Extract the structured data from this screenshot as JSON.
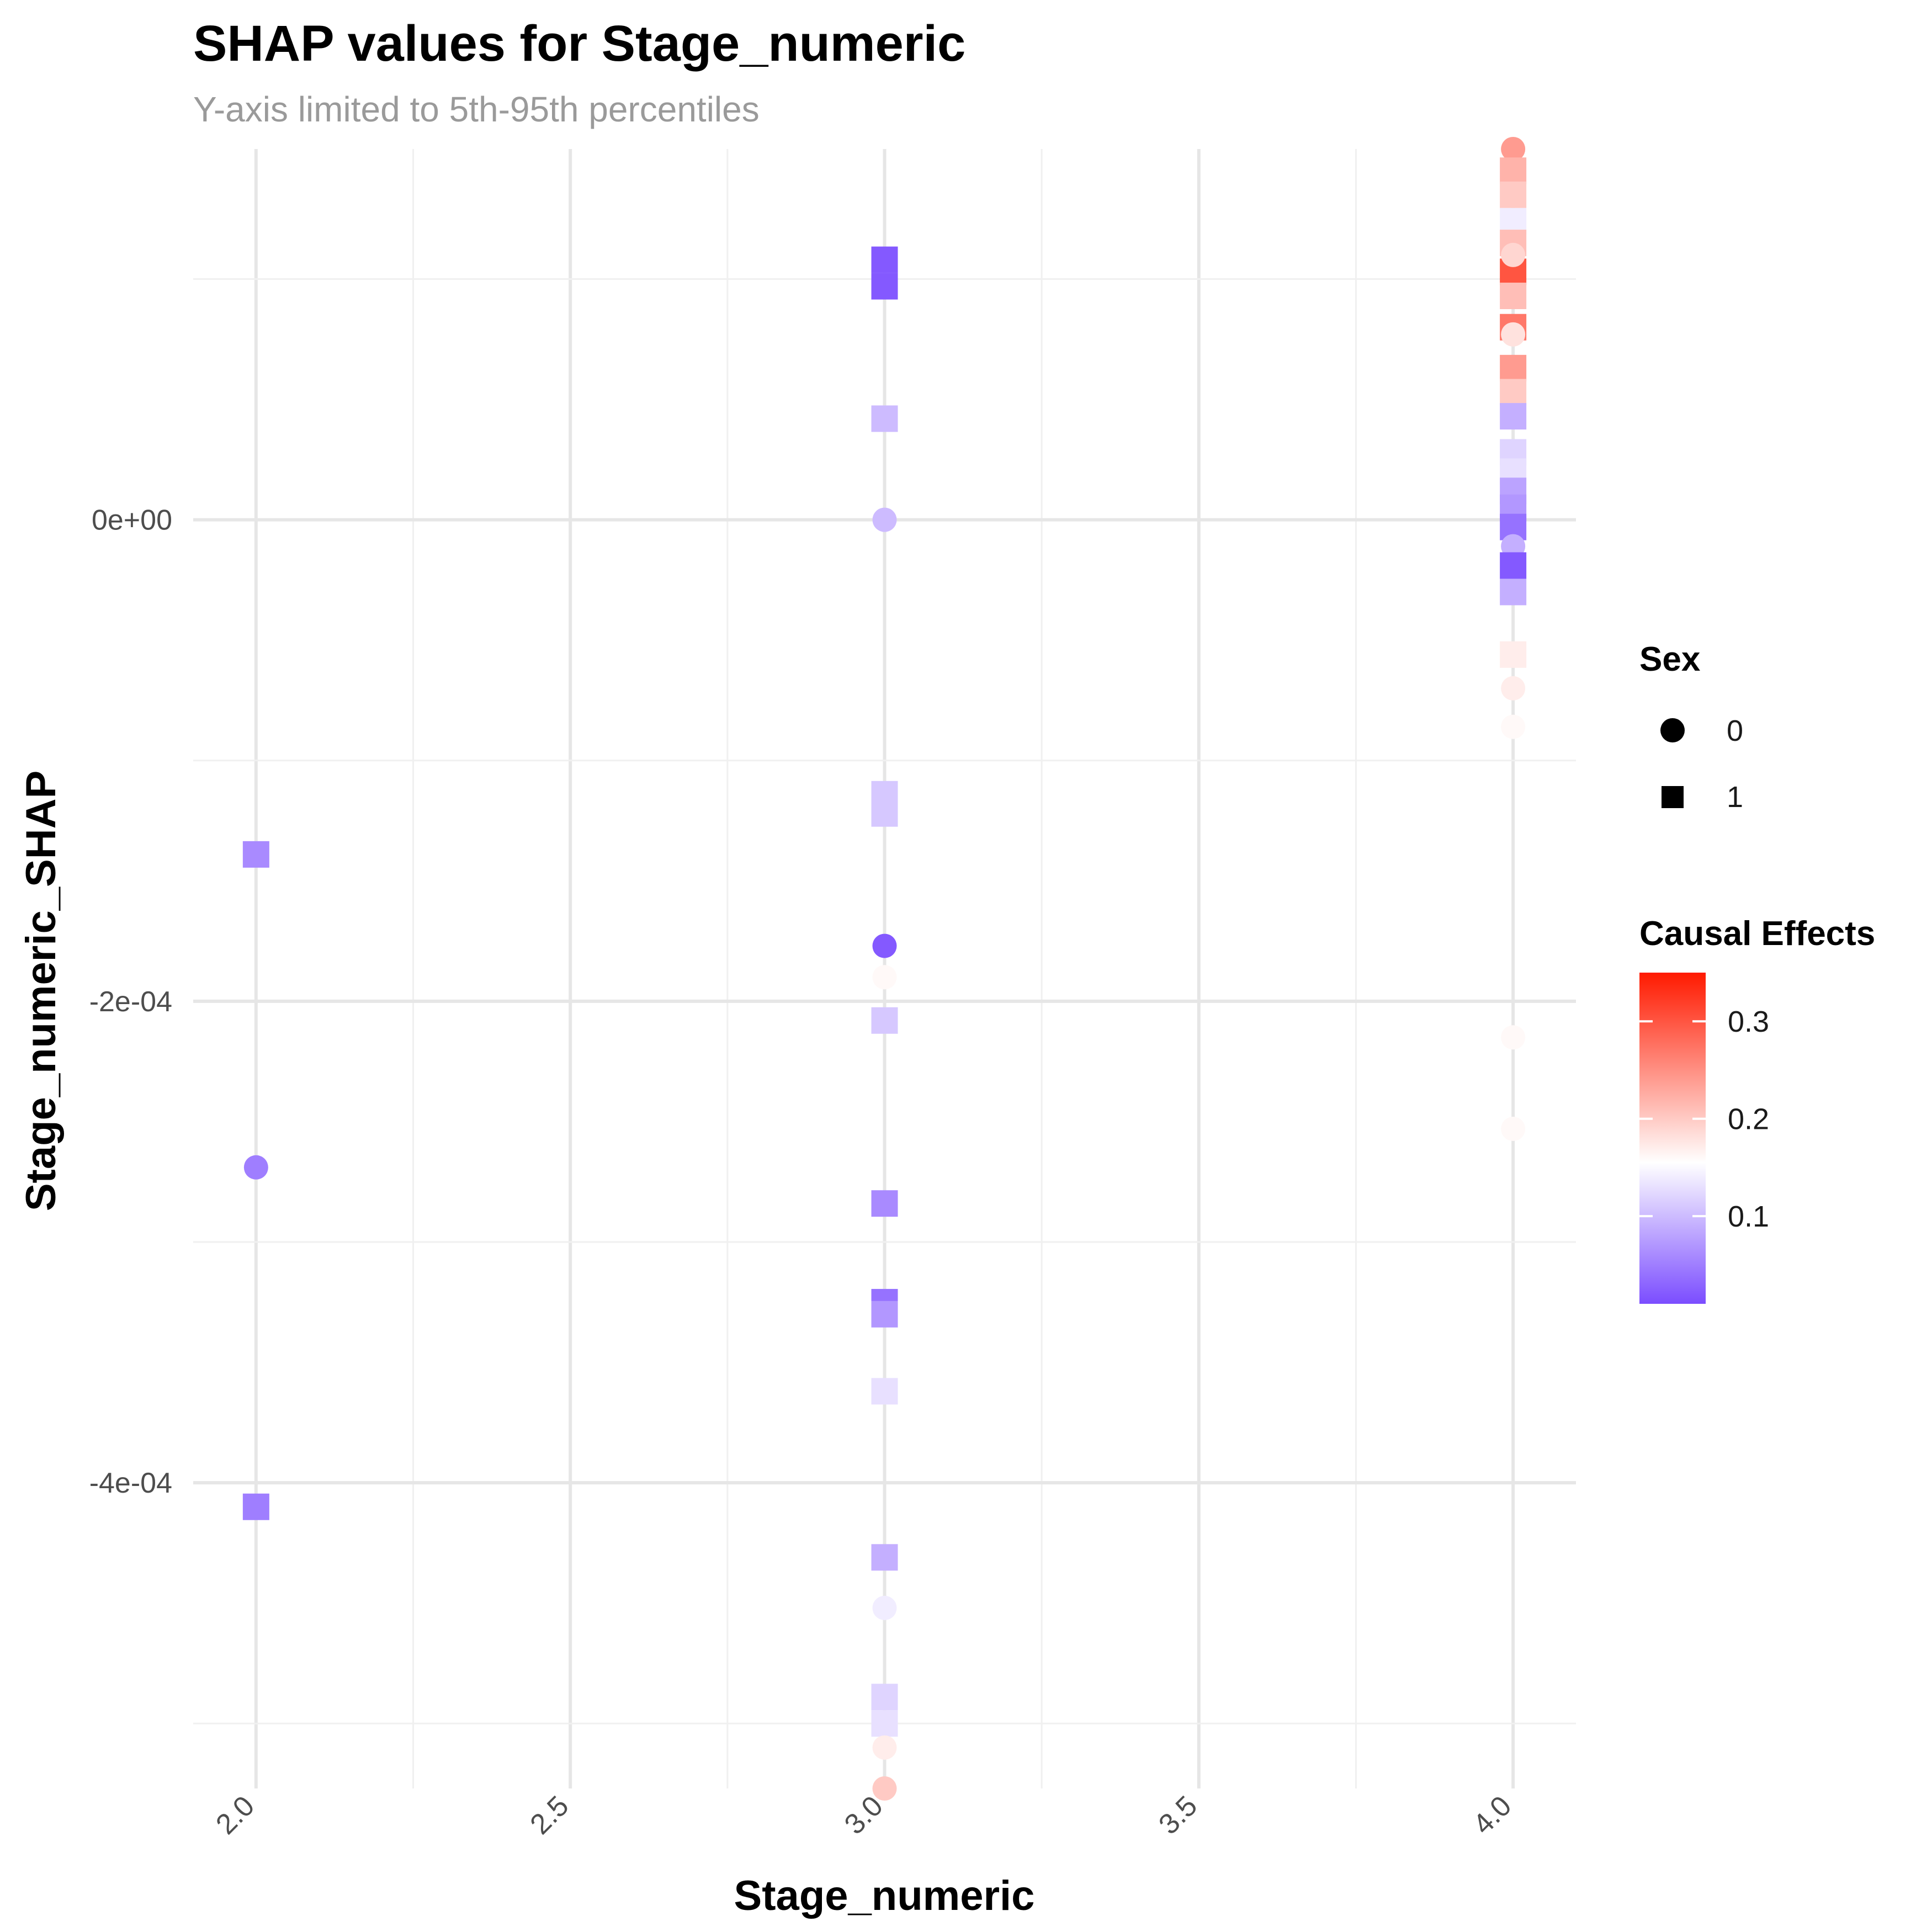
{
  "chart_data": {
    "type": "scatter",
    "title": "SHAP values for Stage_numeric",
    "subtitle": "Y-axis limited to 5th-95th percentiles",
    "xlabel": "Stage_numeric",
    "ylabel": "Stage_numeric_SHAP",
    "xlim": [
      1.9,
      4.1
    ],
    "ylim": [
      -0.000527,
      0.000154
    ],
    "x_ticks": [
      2.0,
      2.5,
      3.0,
      3.5,
      4.0
    ],
    "x_tick_labels": [
      "2.0",
      "2.5",
      "3.0",
      "3.5",
      "4.0"
    ],
    "y_ticks": [
      0.0,
      -0.0002,
      -0.0004
    ],
    "y_tick_labels": [
      "0e+00",
      "-2e-04",
      "-4e-04"
    ],
    "grid": true,
    "legend_position": "right",
    "shape_legend": {
      "title": "Sex",
      "entries": [
        {
          "label": "0",
          "shape": "circle"
        },
        {
          "label": "1",
          "shape": "square"
        }
      ]
    },
    "color_legend": {
      "title": "Causal Effects",
      "min": 0.01,
      "max": 0.35,
      "midpoint": 0.155,
      "low_color": "#7b4dff",
      "mid_color": "#ffffff",
      "high_color": "#ff1a00",
      "ticks": [
        0.1,
        0.2,
        0.3
      ],
      "tick_labels": [
        "0.1",
        "0.2",
        "0.3"
      ]
    },
    "points": [
      {
        "x": 2.0,
        "y": -0.000139,
        "sex": 1,
        "effect": 0.06
      },
      {
        "x": 2.0,
        "y": -0.000269,
        "sex": 0,
        "effect": 0.05
      },
      {
        "x": 2.0,
        "y": -0.00041,
        "sex": 1,
        "effect": 0.05
      },
      {
        "x": 3.0,
        "y": 0.000108,
        "sex": 1,
        "effect": 0.02
      },
      {
        "x": 3.0,
        "y": 9.7e-05,
        "sex": 1,
        "effect": 0.02
      },
      {
        "x": 3.0,
        "y": 4.2e-05,
        "sex": 1,
        "effect": 0.1
      },
      {
        "x": 3.0,
        "y": 0.0,
        "sex": 0,
        "effect": 0.1
      },
      {
        "x": 3.0,
        "y": -0.000114,
        "sex": 1,
        "effect": 0.11
      },
      {
        "x": 3.0,
        "y": -0.000122,
        "sex": 1,
        "effect": 0.11
      },
      {
        "x": 3.0,
        "y": -0.000177,
        "sex": 0,
        "effect": 0.02
      },
      {
        "x": 3.0,
        "y": -0.00019,
        "sex": 0,
        "effect": 0.16
      },
      {
        "x": 3.0,
        "y": -0.000208,
        "sex": 1,
        "effect": 0.11
      },
      {
        "x": 3.0,
        "y": -0.000284,
        "sex": 1,
        "effect": 0.06
      },
      {
        "x": 3.0,
        "y": -0.000325,
        "sex": 1,
        "effect": 0.04
      },
      {
        "x": 3.0,
        "y": -0.00033,
        "sex": 1,
        "effect": 0.07
      },
      {
        "x": 3.0,
        "y": -0.000362,
        "sex": 1,
        "effect": 0.13
      },
      {
        "x": 3.0,
        "y": -0.000431,
        "sex": 1,
        "effect": 0.09
      },
      {
        "x": 3.0,
        "y": -0.000452,
        "sex": 0,
        "effect": 0.14
      },
      {
        "x": 3.0,
        "y": -0.000489,
        "sex": 1,
        "effect": 0.12
      },
      {
        "x": 3.0,
        "y": -0.0005,
        "sex": 1,
        "effect": 0.13
      },
      {
        "x": 3.0,
        "y": -0.00051,
        "sex": 0,
        "effect": 0.17
      },
      {
        "x": 3.0,
        "y": -0.000527,
        "sex": 0,
        "effect": 0.2
      },
      {
        "x": 4.0,
        "y": 0.000154,
        "sex": 0,
        "effect": 0.24
      },
      {
        "x": 4.0,
        "y": 0.000145,
        "sex": 1,
        "effect": 0.22
      },
      {
        "x": 4.0,
        "y": 0.000135,
        "sex": 1,
        "effect": 0.2
      },
      {
        "x": 4.0,
        "y": 0.000124,
        "sex": 1,
        "effect": 0.14
      },
      {
        "x": 4.0,
        "y": 0.000115,
        "sex": 1,
        "effect": 0.21
      },
      {
        "x": 4.0,
        "y": 0.000103,
        "sex": 1,
        "effect": 0.3
      },
      {
        "x": 4.0,
        "y": 0.00011,
        "sex": 0,
        "effect": 0.19
      },
      {
        "x": 4.0,
        "y": 9.3e-05,
        "sex": 1,
        "effect": 0.21
      },
      {
        "x": 4.0,
        "y": 8e-05,
        "sex": 1,
        "effect": 0.27
      },
      {
        "x": 4.0,
        "y": 7.7e-05,
        "sex": 0,
        "effect": 0.18
      },
      {
        "x": 4.0,
        "y": 6.3e-05,
        "sex": 1,
        "effect": 0.24
      },
      {
        "x": 4.0,
        "y": 5.3e-05,
        "sex": 1,
        "effect": 0.2
      },
      {
        "x": 4.0,
        "y": 4.3e-05,
        "sex": 1,
        "effect": 0.09
      },
      {
        "x": 4.0,
        "y": 2.8e-05,
        "sex": 1,
        "effect": 0.12
      },
      {
        "x": 4.0,
        "y": 2e-05,
        "sex": 1,
        "effect": 0.13
      },
      {
        "x": 4.0,
        "y": 1.2e-05,
        "sex": 1,
        "effect": 0.08
      },
      {
        "x": 4.0,
        "y": 5e-06,
        "sex": 1,
        "effect": 0.07
      },
      {
        "x": 4.0,
        "y": -3e-06,
        "sex": 1,
        "effect": 0.04
      },
      {
        "x": 4.0,
        "y": -1.1e-05,
        "sex": 0,
        "effect": 0.09
      },
      {
        "x": 4.0,
        "y": -1.9e-05,
        "sex": 1,
        "effect": 0.02
      },
      {
        "x": 4.0,
        "y": -3e-05,
        "sex": 1,
        "effect": 0.09
      },
      {
        "x": 4.0,
        "y": -5.6e-05,
        "sex": 1,
        "effect": 0.17
      },
      {
        "x": 4.0,
        "y": -7e-05,
        "sex": 0,
        "effect": 0.17
      },
      {
        "x": 4.0,
        "y": -8.6e-05,
        "sex": 0,
        "effect": 0.16
      },
      {
        "x": 4.0,
        "y": -0.000215,
        "sex": 0,
        "effect": 0.16
      },
      {
        "x": 4.0,
        "y": -0.000253,
        "sex": 0,
        "effect": 0.16
      }
    ]
  }
}
